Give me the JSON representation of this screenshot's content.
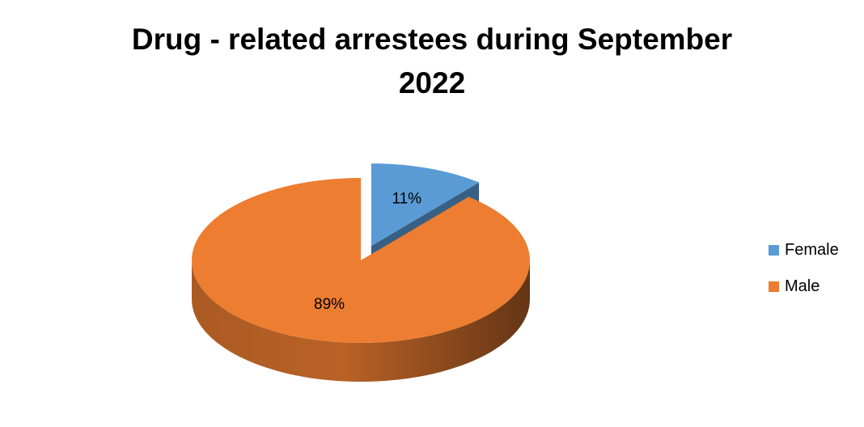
{
  "chart_data": {
    "type": "pie",
    "title": "Drug - related arrestees during September 2022",
    "categories": [
      "Female",
      "Male"
    ],
    "values": [
      11,
      89
    ],
    "value_labels": [
      "11%",
      "89%"
    ],
    "colors": [
      "#5b9bd5",
      "#ed7d31"
    ],
    "exploded": "Female",
    "style": "3d",
    "legend_position": "right"
  }
}
